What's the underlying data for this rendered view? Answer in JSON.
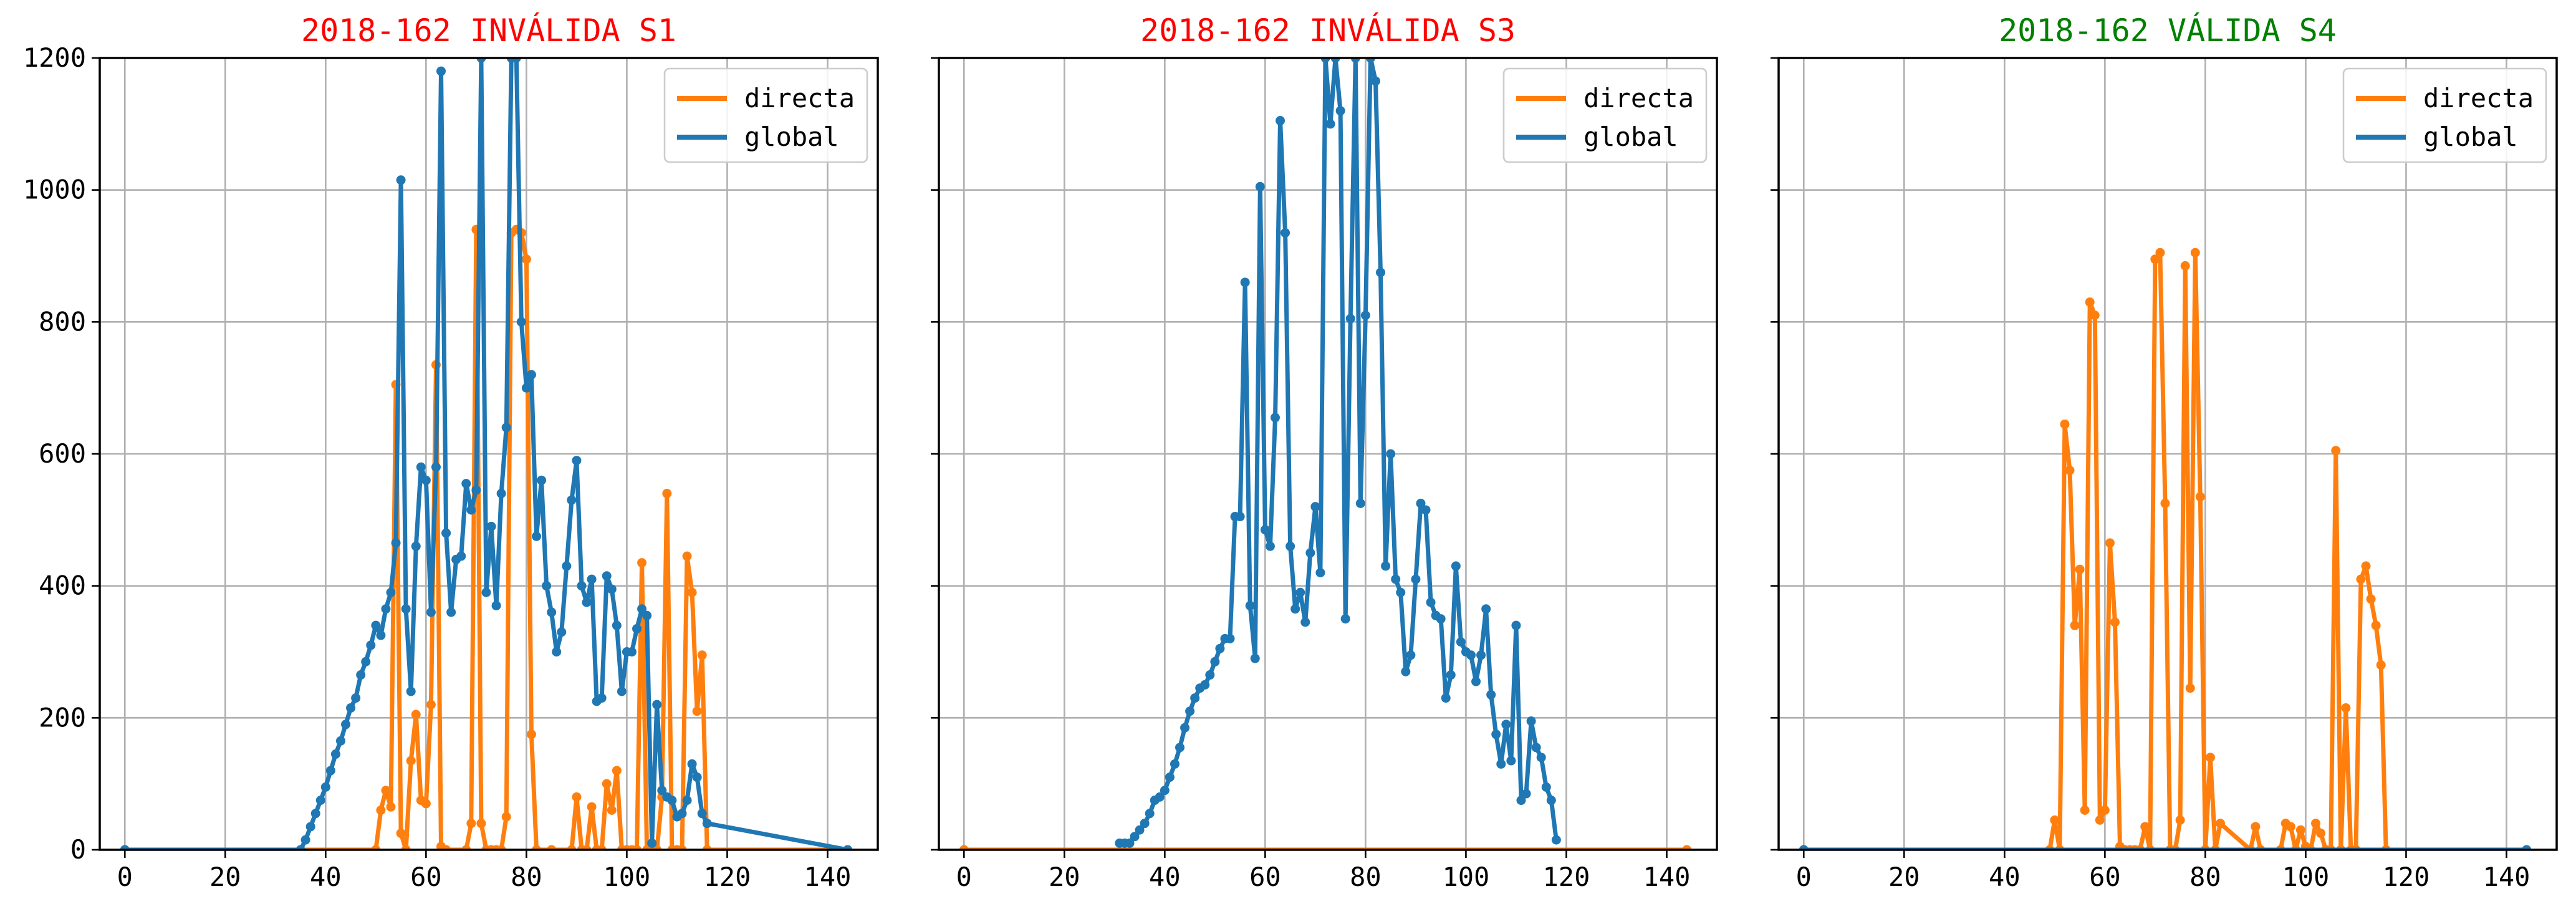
{
  "colors": {
    "directa": "#ff7f0e",
    "global": "#1f77b4",
    "invalid": "#ff0000",
    "valid": "#008000"
  },
  "chart_data": [
    {
      "type": "line",
      "title": "2018-162 INVÁLIDA S1",
      "title_color": "#ff0000",
      "xlim": [
        -5,
        150
      ],
      "ylim": [
        0,
        1200
      ],
      "xticks": [
        0,
        20,
        40,
        60,
        80,
        100,
        120,
        140
      ],
      "yticks": [
        0,
        200,
        400,
        600,
        800,
        1000,
        1200
      ],
      "grid": true,
      "legend_position": "top-right",
      "series": [
        {
          "name": "directa",
          "color": "#ff7f0e",
          "x": [
            0,
            50,
            51,
            52,
            53,
            54,
            55,
            56,
            57,
            58,
            59,
            60,
            61,
            62,
            63,
            64,
            68,
            69,
            70,
            71,
            72,
            73,
            74,
            75,
            76,
            77,
            78,
            79,
            80,
            81,
            82,
            85,
            89,
            90,
            91,
            92,
            93,
            94,
            95,
            96,
            97,
            98,
            99,
            100,
            101,
            102,
            103,
            104,
            105,
            106,
            107,
            108,
            109,
            110,
            111,
            112,
            113,
            114,
            115,
            116,
            144
          ],
          "y": [
            0,
            0,
            60,
            90,
            65,
            705,
            25,
            0,
            135,
            205,
            75,
            70,
            220,
            735,
            5,
            0,
            0,
            40,
            940,
            40,
            0,
            0,
            0,
            0,
            50,
            935,
            940,
            935,
            895,
            175,
            0,
            0,
            0,
            80,
            0,
            0,
            65,
            0,
            0,
            100,
            60,
            120,
            0,
            0,
            0,
            0,
            435,
            0,
            0,
            0,
            80,
            540,
            0,
            0,
            0,
            445,
            390,
            210,
            295,
            0,
            0
          ]
        },
        {
          "name": "global",
          "color": "#1f77b4",
          "x": [
            0,
            35,
            36,
            37,
            38,
            39,
            40,
            41,
            42,
            43,
            44,
            45,
            46,
            47,
            48,
            49,
            50,
            51,
            52,
            53,
            54,
            55,
            56,
            57,
            58,
            59,
            60,
            61,
            62,
            63,
            64,
            65,
            66,
            67,
            68,
            69,
            70,
            71,
            72,
            73,
            74,
            75,
            76,
            77,
            78,
            79,
            80,
            81,
            82,
            83,
            84,
            85,
            86,
            87,
            88,
            89,
            90,
            91,
            92,
            93,
            94,
            95,
            96,
            97,
            98,
            99,
            100,
            101,
            102,
            103,
            104,
            105,
            106,
            107,
            108,
            109,
            110,
            111,
            112,
            113,
            114,
            115,
            116,
            144
          ],
          "y": [
            0,
            0,
            15,
            35,
            55,
            75,
            95,
            120,
            145,
            165,
            190,
            215,
            230,
            265,
            285,
            310,
            340,
            325,
            365,
            390,
            465,
            1015,
            365,
            240,
            460,
            580,
            560,
            360,
            580,
            1180,
            480,
            360,
            440,
            445,
            555,
            515,
            545,
            1200,
            390,
            490,
            370,
            540,
            640,
            1200,
            1200,
            800,
            700,
            720,
            475,
            560,
            400,
            360,
            300,
            330,
            430,
            530,
            590,
            400,
            375,
            410,
            225,
            230,
            415,
            395,
            340,
            240,
            300,
            300,
            335,
            365,
            355,
            10,
            220,
            90,
            80,
            75,
            50,
            55,
            75,
            130,
            110,
            55,
            40,
            0
          ]
        }
      ]
    },
    {
      "type": "line",
      "title": "2018-162 INVÁLIDA S3",
      "title_color": "#ff0000",
      "xlim": [
        -5,
        150
      ],
      "ylim": [
        0,
        1200
      ],
      "xticks": [
        0,
        20,
        40,
        60,
        80,
        100,
        120,
        140
      ],
      "yticks": [
        0,
        200,
        400,
        600,
        800,
        1000,
        1200
      ],
      "grid": true,
      "legend_position": "top-right",
      "series": [
        {
          "name": "directa",
          "color": "#ff7f0e",
          "x": [
            0,
            144
          ],
          "y": [
            0,
            0
          ]
        },
        {
          "name": "global",
          "color": "#1f77b4",
          "x": [
            31,
            32,
            33,
            34,
            35,
            36,
            37,
            38,
            39,
            40,
            41,
            42,
            43,
            44,
            45,
            46,
            47,
            48,
            49,
            50,
            51,
            52,
            53,
            54,
            55,
            56,
            57,
            58,
            59,
            60,
            61,
            62,
            63,
            64,
            65,
            66,
            67,
            68,
            69,
            70,
            71,
            72,
            73,
            74,
            75,
            76,
            77,
            78,
            79,
            80,
            81,
            82,
            83,
            84,
            85,
            86,
            87,
            88,
            89,
            90,
            91,
            92,
            93,
            94,
            95,
            96,
            97,
            98,
            99,
            100,
            101,
            102,
            103,
            104,
            105,
            106,
            107,
            108,
            109,
            110,
            111,
            112,
            113,
            114,
            115,
            116,
            117,
            118
          ],
          "y": [
            10,
            10,
            10,
            20,
            30,
            40,
            55,
            75,
            80,
            90,
            110,
            130,
            155,
            185,
            210,
            230,
            245,
            250,
            265,
            285,
            305,
            320,
            320,
            505,
            505,
            860,
            370,
            290,
            1005,
            485,
            460,
            655,
            1105,
            935,
            460,
            365,
            390,
            345,
            450,
            520,
            420,
            1200,
            1100,
            1200,
            1120,
            350,
            805,
            1200,
            525,
            810,
            1200,
            1165,
            875,
            430,
            600,
            410,
            390,
            270,
            295,
            410,
            525,
            515,
            375,
            355,
            350,
            230,
            265,
            430,
            315,
            300,
            295,
            255,
            295,
            365,
            235,
            175,
            130,
            190,
            135,
            340,
            75,
            85,
            195,
            155,
            140,
            95,
            75,
            15
          ]
        }
      ]
    },
    {
      "type": "line",
      "title": "2018-162 VÁLIDA S4",
      "title_color": "#008000",
      "xlim": [
        -5,
        150
      ],
      "ylim": [
        0,
        1200
      ],
      "xticks": [
        0,
        20,
        40,
        60,
        80,
        100,
        120,
        140
      ],
      "yticks": [
        0,
        200,
        400,
        600,
        800,
        1000,
        1200
      ],
      "grid": true,
      "legend_position": "top-right",
      "series": [
        {
          "name": "directa",
          "color": "#ff7f0e",
          "x": [
            0,
            49,
            50,
            51,
            52,
            53,
            54,
            55,
            56,
            57,
            58,
            59,
            60,
            61,
            62,
            63,
            64,
            65,
            66,
            67,
            68,
            69,
            70,
            71,
            72,
            73,
            74,
            75,
            76,
            77,
            78,
            79,
            80,
            81,
            82,
            83,
            89,
            90,
            91,
            95,
            96,
            97,
            98,
            99,
            100,
            101,
            102,
            103,
            104,
            105,
            106,
            107,
            108,
            109,
            110,
            111,
            112,
            113,
            114,
            115,
            116,
            144
          ],
          "y": [
            0,
            0,
            45,
            0,
            645,
            575,
            340,
            425,
            60,
            830,
            810,
            45,
            60,
            465,
            345,
            5,
            0,
            0,
            0,
            0,
            35,
            0,
            895,
            905,
            525,
            0,
            0,
            45,
            885,
            245,
            905,
            535,
            0,
            140,
            0,
            40,
            0,
            35,
            0,
            0,
            40,
            35,
            0,
            30,
            5,
            0,
            40,
            25,
            0,
            0,
            605,
            0,
            215,
            0,
            0,
            410,
            430,
            380,
            340,
            280,
            0,
            0
          ]
        },
        {
          "name": "global",
          "color": "#1f77b4",
          "x": [
            0,
            144
          ],
          "y": [
            0,
            0
          ]
        }
      ]
    }
  ]
}
